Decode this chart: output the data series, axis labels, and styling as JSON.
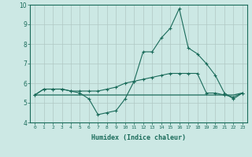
{
  "xlabel": "Humidex (Indice chaleur)",
  "bg_color": "#cce8e4",
  "grid_color": "#b0c8c4",
  "line_color": "#1a6b5a",
  "x_values": [
    0,
    1,
    2,
    3,
    4,
    5,
    6,
    7,
    8,
    9,
    10,
    11,
    12,
    13,
    14,
    15,
    16,
    17,
    18,
    19,
    20,
    21,
    22,
    23
  ],
  "series1": [
    5.4,
    5.7,
    5.7,
    5.7,
    5.6,
    5.5,
    5.2,
    4.4,
    4.5,
    4.6,
    5.2,
    6.1,
    7.6,
    7.6,
    8.3,
    8.8,
    9.8,
    7.8,
    7.5,
    7.0,
    6.4,
    5.5,
    5.2,
    5.5
  ],
  "series2": [
    5.4,
    5.7,
    5.7,
    5.7,
    5.6,
    5.6,
    5.6,
    5.6,
    5.7,
    5.8,
    6.0,
    6.1,
    6.2,
    6.3,
    6.4,
    6.5,
    6.5,
    6.5,
    6.5,
    5.5,
    5.5,
    5.4,
    5.3,
    5.5
  ],
  "series3": [
    5.4,
    5.4,
    5.4,
    5.4,
    5.4,
    5.4,
    5.4,
    5.4,
    5.4,
    5.4,
    5.4,
    5.4,
    5.4,
    5.4,
    5.4,
    5.4,
    5.4,
    5.4,
    5.4,
    5.4,
    5.4,
    5.4,
    5.4,
    5.5
  ],
  "ylim": [
    4.0,
    10.0
  ],
  "xlim": [
    -0.5,
    23.5
  ],
  "yticks": [
    4,
    5,
    6,
    7,
    8,
    9,
    10
  ],
  "xticks": [
    0,
    1,
    2,
    3,
    4,
    5,
    6,
    7,
    8,
    9,
    10,
    11,
    12,
    13,
    14,
    15,
    16,
    17,
    18,
    19,
    20,
    21,
    22,
    23
  ],
  "xtick_labels": [
    "0",
    "1",
    "2",
    "3",
    "4",
    "5",
    "6",
    "7",
    "8",
    "9",
    "10",
    "11",
    "12",
    "13",
    "14",
    "15",
    "16",
    "17",
    "18",
    "19",
    "20",
    "21",
    "22",
    "23"
  ]
}
